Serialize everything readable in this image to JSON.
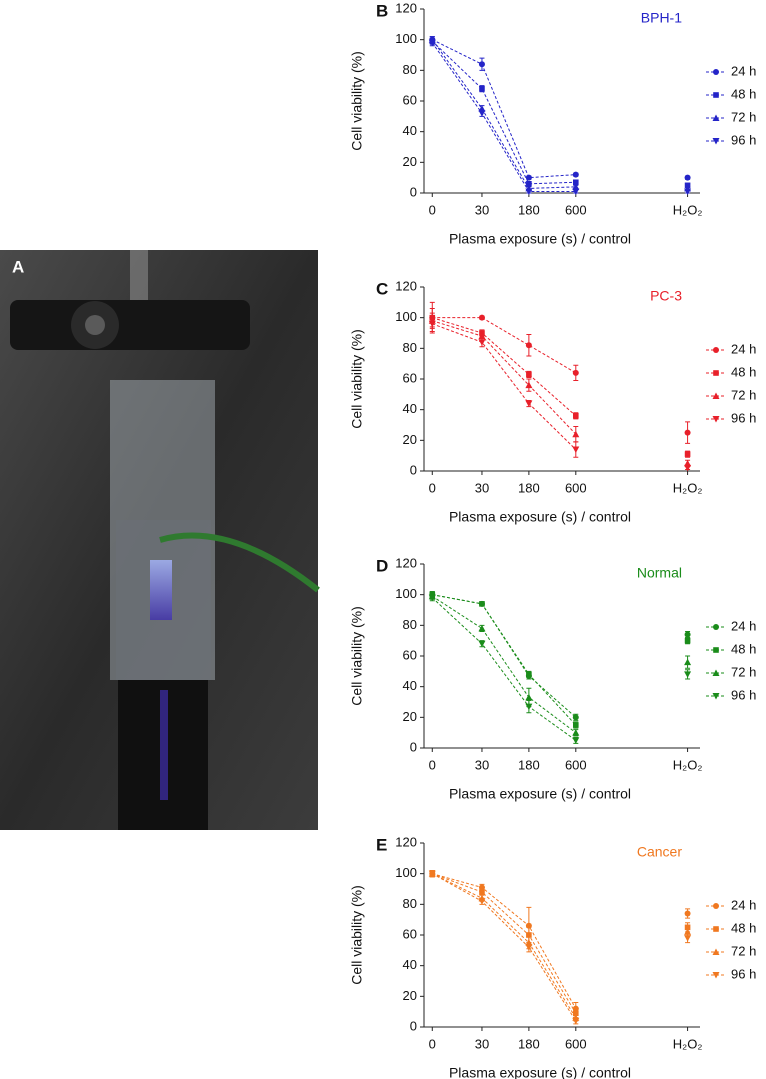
{
  "photo_panel": {
    "label": "A"
  },
  "chart_data": [
    {
      "type": "line",
      "panel": "B",
      "title": "BPH-1",
      "xlabel": "Plasma exposure (s) / control",
      "ylabel": "Cell viability (%)",
      "categories": [
        "0",
        "30",
        "180",
        "600",
        "H₂O₂"
      ],
      "ylim": [
        0,
        120
      ],
      "yticks": [
        0,
        20,
        40,
        60,
        80,
        100,
        120
      ],
      "title_color": "#2424c8",
      "series": [
        {
          "name": "24 h",
          "color": "#2424c8",
          "marker": "circle",
          "values": [
            100,
            84,
            10,
            12,
            10
          ],
          "errors": [
            2,
            4,
            1,
            1,
            1
          ]
        },
        {
          "name": "48 h",
          "color": "#2424c8",
          "marker": "square",
          "values": [
            99,
            68,
            6,
            7,
            5
          ],
          "errors": [
            2,
            2,
            1,
            1,
            1
          ]
        },
        {
          "name": "72 h",
          "color": "#2424c8",
          "marker": "triangle-up",
          "values": [
            100,
            55,
            3,
            4,
            3
          ],
          "errors": [
            2,
            2,
            1,
            1,
            1
          ]
        },
        {
          "name": "96 h",
          "color": "#2424c8",
          "marker": "triangle-down",
          "values": [
            98,
            52,
            1,
            1,
            1
          ],
          "errors": [
            2,
            2,
            1,
            1,
            1
          ]
        }
      ]
    },
    {
      "type": "line",
      "panel": "C",
      "title": "PC-3",
      "xlabel": "Plasma exposure (s) / control",
      "ylabel": "Cell viability (%)",
      "categories": [
        "0",
        "30",
        "180",
        "600",
        "H₂O₂"
      ],
      "ylim": [
        0,
        120
      ],
      "yticks": [
        0,
        20,
        40,
        60,
        80,
        100,
        120
      ],
      "title_color": "#e8202a",
      "series": [
        {
          "name": "24 h",
          "color": "#e8202a",
          "marker": "circle",
          "values": [
            100,
            100,
            82,
            64,
            25
          ],
          "errors": [
            10,
            1,
            7,
            5,
            7
          ]
        },
        {
          "name": "48 h",
          "color": "#e8202a",
          "marker": "square",
          "values": [
            100,
            90,
            63,
            36,
            11
          ],
          "errors": [
            6,
            2,
            2,
            2,
            2
          ]
        },
        {
          "name": "72 h",
          "color": "#e8202a",
          "marker": "triangle-up",
          "values": [
            98,
            88,
            56,
            24,
            5
          ],
          "errors": [
            5,
            3,
            4,
            5,
            2
          ]
        },
        {
          "name": "96 h",
          "color": "#e8202a",
          "marker": "triangle-down",
          "values": [
            96,
            84,
            44,
            14,
            2
          ],
          "errors": [
            5,
            3,
            2,
            5,
            1
          ]
        }
      ]
    },
    {
      "type": "line",
      "panel": "D",
      "title": "Normal",
      "xlabel": "Plasma exposure (s) / control",
      "ylabel": "Cell viability (%)",
      "categories": [
        "0",
        "30",
        "180",
        "600",
        "H₂O₂"
      ],
      "ylim": [
        0,
        120
      ],
      "yticks": [
        0,
        20,
        40,
        60,
        80,
        100,
        120
      ],
      "title_color": "#1a8c1a",
      "series": [
        {
          "name": "24 h",
          "color": "#1a8c1a",
          "marker": "circle",
          "values": [
            100,
            94,
            47,
            20,
            74
          ],
          "errors": [
            2,
            1,
            2,
            2,
            2
          ]
        },
        {
          "name": "48 h",
          "color": "#1a8c1a",
          "marker": "square",
          "values": [
            100,
            94,
            48,
            15,
            70
          ],
          "errors": [
            2,
            1,
            2,
            2,
            2
          ]
        },
        {
          "name": "72 h",
          "color": "#1a8c1a",
          "marker": "triangle-up",
          "values": [
            99,
            78,
            33,
            10,
            56
          ],
          "errors": [
            2,
            2,
            6,
            2,
            4
          ]
        },
        {
          "name": "96 h",
          "color": "#1a8c1a",
          "marker": "triangle-down",
          "values": [
            98,
            68,
            27,
            5,
            48
          ],
          "errors": [
            2,
            2,
            4,
            2,
            3
          ]
        }
      ]
    },
    {
      "type": "line",
      "panel": "E",
      "title": "Cancer",
      "xlabel": "Plasma exposure (s) / control",
      "ylabel": "Cell viability (%)",
      "categories": [
        "0",
        "30",
        "180",
        "600",
        "H₂O₂"
      ],
      "ylim": [
        0,
        120
      ],
      "yticks": [
        0,
        20,
        40,
        60,
        80,
        100,
        120
      ],
      "title_color": "#f07820",
      "series": [
        {
          "name": "24 h",
          "color": "#f07820",
          "marker": "circle",
          "values": [
            100,
            91,
            66,
            12,
            74
          ],
          "errors": [
            2,
            2,
            12,
            4,
            3
          ]
        },
        {
          "name": "48 h",
          "color": "#f07820",
          "marker": "square",
          "values": [
            100,
            88,
            60,
            9,
            65
          ],
          "errors": [
            2,
            2,
            5,
            3,
            3
          ]
        },
        {
          "name": "72 h",
          "color": "#f07820",
          "marker": "triangle-up",
          "values": [
            100,
            84,
            55,
            6,
            62
          ],
          "errors": [
            2,
            2,
            4,
            2,
            3
          ]
        },
        {
          "name": "96 h",
          "color": "#f07820",
          "marker": "triangle-down",
          "values": [
            100,
            82,
            52,
            4,
            58
          ],
          "errors": [
            2,
            2,
            3,
            2,
            3
          ]
        }
      ]
    }
  ]
}
